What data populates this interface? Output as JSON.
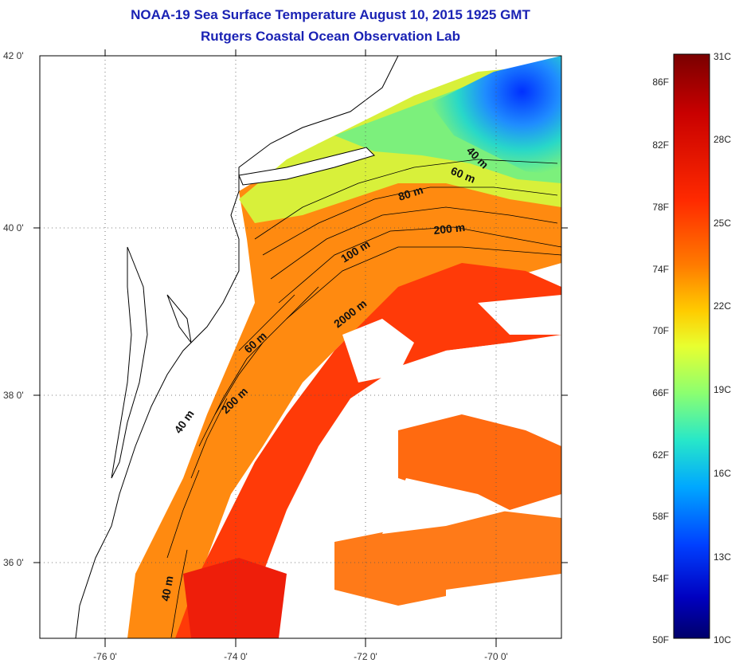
{
  "title": {
    "line1": "NOAA-19 Sea Surface Temperature August 10, 2015 1925 GMT",
    "line2": "Rutgers Coastal Ocean Observation Lab"
  },
  "map": {
    "lat_ticks": [
      "42 0'",
      "40 0'",
      "38 0'",
      "36 0'"
    ],
    "lon_ticks": [
      "-76 0'",
      "-74 0'",
      "-72 0'",
      "-70 0'"
    ],
    "contour_labels": [
      "40 m",
      "60 m",
      "80 m",
      "200 m",
      "100 m",
      "2000 m",
      "60 m",
      "200 m",
      "40 m",
      "40 m"
    ]
  },
  "colorbar": {
    "fahrenheit_labels": [
      "86F",
      "82F",
      "78F",
      "74F",
      "70F",
      "66F",
      "62F",
      "58F",
      "54F",
      "50F"
    ],
    "celsius_labels": [
      "31C",
      "28C",
      "25C",
      "22C",
      "19C",
      "16C",
      "13C",
      "10C"
    ],
    "colors": [
      "#7a0000",
      "#c80000",
      "#ff2a00",
      "#ff7a00",
      "#ffcc00",
      "#e8ff30",
      "#8cff70",
      "#28e8c8",
      "#00a8ff",
      "#0040ff",
      "#0000c0",
      "#00006a"
    ]
  }
}
